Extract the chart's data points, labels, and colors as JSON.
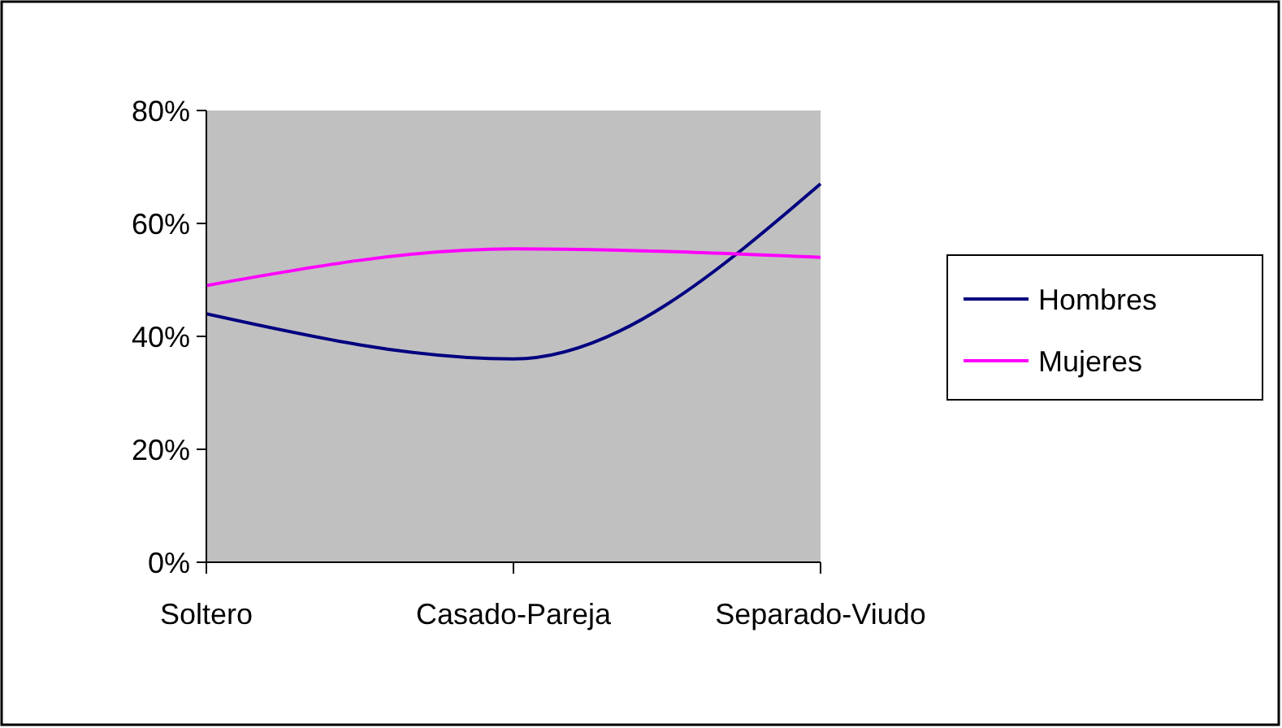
{
  "chart_data": {
    "type": "line",
    "categories": [
      "Soltero",
      "Casado-Pareja",
      "Separado-Viudo"
    ],
    "series": [
      {
        "name": "Hombres",
        "color": "#000080",
        "values": [
          44,
          36,
          67
        ]
      },
      {
        "name": "Mujeres",
        "color": "#ff00ff",
        "values": [
          49,
          55.5,
          54
        ]
      }
    ],
    "ylim": [
      0,
      80
    ],
    "yticks": [
      {
        "value": 0,
        "label": "0%"
      },
      {
        "value": 20,
        "label": "20%"
      },
      {
        "value": 40,
        "label": "40%"
      },
      {
        "value": 60,
        "label": "60%"
      },
      {
        "value": 80,
        "label": "80%"
      }
    ],
    "grid": false,
    "legend": "right",
    "marker": "none",
    "line_style": "solid"
  }
}
